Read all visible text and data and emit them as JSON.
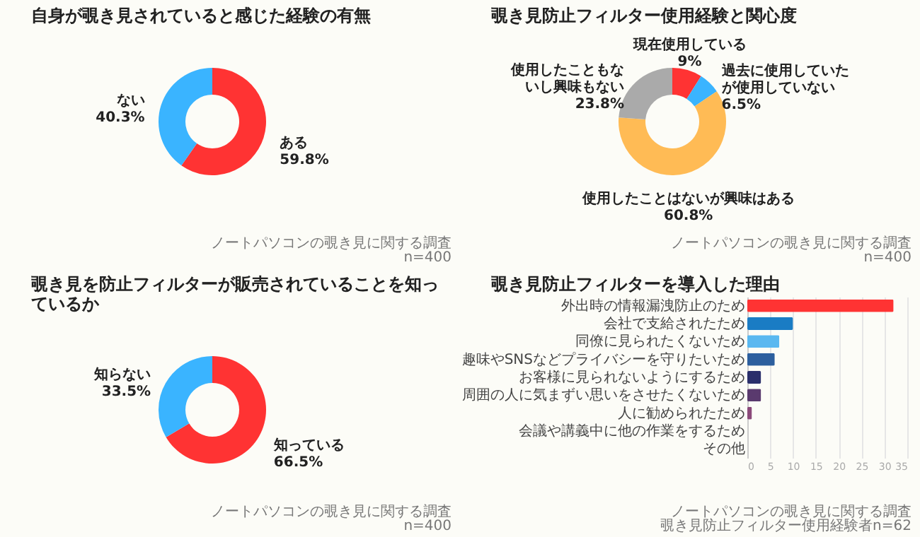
{
  "chart_data": [
    {
      "type": "donut",
      "title": "自身が覗き見されていると感じた経験の有無",
      "categories": [
        "ある",
        "ない"
      ],
      "values": [
        59.8,
        40.3
      ],
      "colors": [
        "#ff3333",
        "#3ab4ff"
      ],
      "value_labels": [
        "59.8%",
        "40.3%"
      ],
      "annotations": [
        "ノートパソコンの覗き見に関する調査",
        "n=400"
      ]
    },
    {
      "type": "donut",
      "title": "覗き見防止フィルター使用経験と関心度",
      "categories": [
        "現在使用している",
        "過去に使用していたが使用していない",
        "使用したことはないが興味はある",
        "使用したこともないし興味もない"
      ],
      "values": [
        9,
        6.5,
        60.8,
        23.8
      ],
      "colors": [
        "#ff3333",
        "#3ab4ff",
        "#ffbb55",
        "#aaaaaa"
      ],
      "value_labels": [
        "9%",
        "6.5%",
        "60.8%",
        "23.8%"
      ],
      "annotations": [
        "ノートパソコンの覗き見に関する調査",
        "n=400"
      ]
    },
    {
      "type": "donut",
      "title": "覗き見を防止フィルターが販売されていることを知っているか",
      "categories": [
        "知っている",
        "知らない"
      ],
      "values": [
        66.5,
        33.5
      ],
      "colors": [
        "#ff3333",
        "#3ab4ff"
      ],
      "value_labels": [
        "66.5%",
        "33.5%"
      ],
      "annotations": [
        "ノートパソコンの覗き見に関する調査",
        "n=400"
      ]
    },
    {
      "type": "bar",
      "orientation": "horizontal",
      "title": "覗き見防止フィルターを導入した理由",
      "categories": [
        "外出時の情報漏洩防止のため",
        "会社で支給されたため",
        "同僚に見られたくないため",
        "趣味やSNSなどプライバシーを守りたいため",
        "お客様に見られないようにするため",
        "周囲の人に気まずい思いをさせたくないため",
        "人に勧められたため",
        "会議や講義中に他の作業をするため",
        "その他"
      ],
      "values": [
        32,
        10,
        7,
        6,
        3,
        3,
        1,
        0,
        0
      ],
      "colors": [
        "#ff3333",
        "#1a7cc4",
        "#5ab8f0",
        "#2d5f9e",
        "#2a2f6b",
        "#5a3a6e",
        "#8b4a7a",
        "#999999",
        "#999999"
      ],
      "xlim": [
        0,
        35
      ],
      "xticks": [
        0,
        5,
        10,
        15,
        20,
        25,
        30,
        35
      ],
      "grid": "x",
      "annotations": [
        "ノートパソコンの覗き見に関する調査",
        "覗き見防止フィルター使用経験者n=62"
      ]
    }
  ]
}
